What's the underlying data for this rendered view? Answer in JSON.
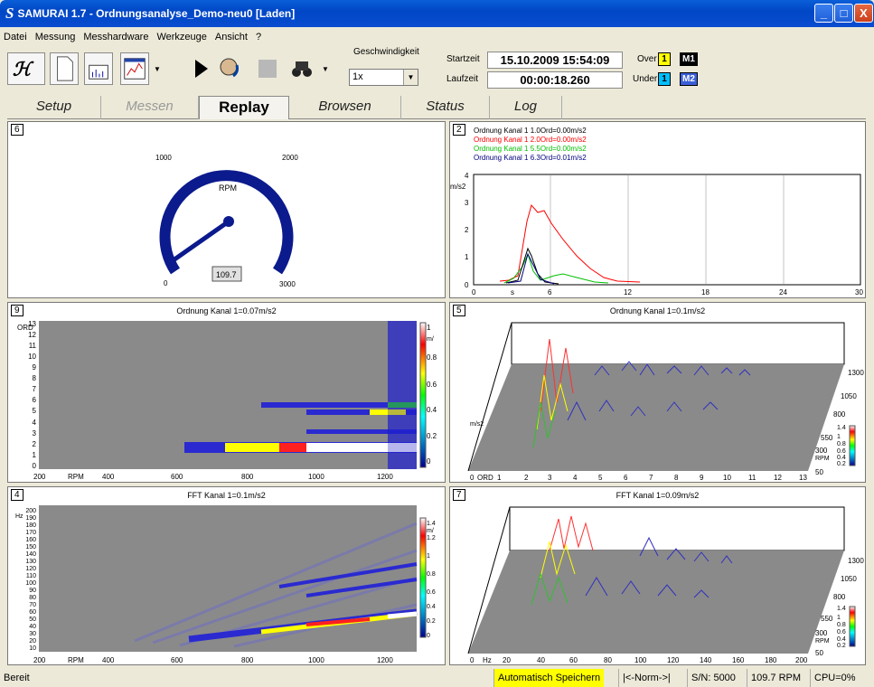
{
  "window": {
    "title": "SAMURAI 1.7 - Ordnungsanalyse_Demo-neu0 [Laden]",
    "logo": "S",
    "minimize": "_",
    "maximize": "□",
    "close": "X"
  },
  "menu": [
    "Datei",
    "Messung",
    "Messhardware",
    "Werkzeuge",
    "Ansicht",
    "?"
  ],
  "toolbar": {
    "icons": [
      "logo-icon",
      "new-document-icon",
      "hand-chart-icon",
      "chart-window-icon",
      "dropdown-arrow-icon",
      "play-icon",
      "listen-icon",
      "stop-icon",
      "binoculars-icon",
      "dropdown-arrow-icon"
    ],
    "speed_label": "Geschwindigkeit",
    "speed_value": "1x",
    "start_label": "Startzeit",
    "start_value": "15.10.2009  15:54:09",
    "run_label": "Laufzeit",
    "run_value": "00:00:18.260",
    "over_label": "Over",
    "over_value": "1",
    "under_label": "Under",
    "under_value": "1",
    "m1": "M1",
    "m2": "M2",
    "colors": {
      "over": "#ffff00",
      "under": "#00bfff",
      "m2": "#3b5fd8"
    }
  },
  "tabs": [
    {
      "label": "Setup",
      "state": "normal"
    },
    {
      "label": "Messen",
      "state": "disabled"
    },
    {
      "label": "Replay",
      "state": "active"
    },
    {
      "label": "Browsen",
      "state": "normal"
    },
    {
      "label": "Status",
      "state": "normal"
    },
    {
      "label": "Log",
      "state": "normal"
    }
  ],
  "panels": {
    "gauge": {
      "number": "6",
      "unit": "RPM",
      "value": "109.7",
      "ticks": [
        "0",
        "1000",
        "2000",
        "3000"
      ],
      "needle_fraction": 0.037
    },
    "orders_line": {
      "number": "2",
      "legend": [
        {
          "text": "Ordnung Kanal 1 1.0Ord=0.00m/s2",
          "color": "#000000"
        },
        {
          "text": "Ordnung Kanal 1 2.0Ord=0.00m/s2",
          "color": "#ff0000"
        },
        {
          "text": "Ordnung Kanal 1 5.5Ord=0.00m/s2",
          "color": "#00c000"
        },
        {
          "text": "Ordnung Kanal 1 6.3Ord=0.01m/s2",
          "color": "#000080"
        }
      ],
      "yunit": "m/s2",
      "yticks": [
        "0",
        "1",
        "2",
        "3",
        "4"
      ],
      "xticks": [
        "0",
        "6",
        "12",
        "18",
        "24",
        "30"
      ],
      "xunit": "s"
    },
    "order_map": {
      "number": "9",
      "title": "Ordnung Kanal 1=0.07m/s2",
      "yunit": "ORD",
      "yticks": [
        "0",
        "1",
        "2",
        "3",
        "4",
        "5",
        "6",
        "7",
        "8",
        "9",
        "10",
        "11",
        "12",
        "13"
      ],
      "xunit": "RPM",
      "xticks": [
        "200",
        "400",
        "600",
        "800",
        "1000",
        "1200"
      ],
      "scale_unit": "m/",
      "scale_ticks": [
        "1",
        "0.8",
        "0.6",
        "0.4",
        "0.2",
        "0"
      ]
    },
    "order_waterfall": {
      "number": "5",
      "title": "Ordnung Kanal 1=0.1m/s2",
      "xunit": "ORD",
      "xticks": [
        "0",
        "1",
        "2",
        "3",
        "4",
        "5",
        "6",
        "7",
        "8",
        "9",
        "10",
        "11",
        "12",
        "13"
      ],
      "zunit": "RPM",
      "zticks": [
        "1300",
        "1050",
        "800",
        "550",
        "300",
        "50"
      ],
      "yunit": "m/s2",
      "scale_ticks": [
        "1.4",
        "1",
        "0.8",
        "0.6",
        "0.4",
        "0.2"
      ]
    },
    "fft_map": {
      "number": "4",
      "title": "FFT Kanal 1=0.1m/s2",
      "yunit": "Hz",
      "yticks": [
        "10",
        "20",
        "30",
        "40",
        "50",
        "60",
        "70",
        "80",
        "90",
        "100",
        "110",
        "120",
        "130",
        "140",
        "150",
        "160",
        "170",
        "180",
        "190",
        "200"
      ],
      "xunit": "RPM",
      "xticks": [
        "200",
        "400",
        "600",
        "800",
        "1000",
        "1200"
      ],
      "scale_unit": "m/",
      "scale_ticks": [
        "1.4",
        "1.2",
        "1",
        "0.8",
        "0.6",
        "0.4",
        "0.2",
        "0"
      ]
    },
    "fft_waterfall": {
      "number": "7",
      "title": "FFT Kanal 1=0.09m/s2",
      "xunit": "Hz",
      "xticks": [
        "0",
        "20",
        "40",
        "60",
        "80",
        "100",
        "120",
        "140",
        "160",
        "180",
        "200"
      ],
      "zunit": "RPM",
      "zticks": [
        "1300",
        "1050",
        "800",
        "550",
        "300",
        "50"
      ],
      "scale_ticks": [
        "1.4",
        "1",
        "0.8",
        "0.6",
        "0.4",
        "0.2"
      ]
    }
  },
  "status": {
    "ready": "Bereit",
    "autosave": "Automatisch Speichern",
    "norm": "|<-Norm->|",
    "sn": "S/N: 5000",
    "rpm": "109.7 RPM",
    "cpu": "CPU=0%",
    "autosave_color": "#ffff00"
  }
}
